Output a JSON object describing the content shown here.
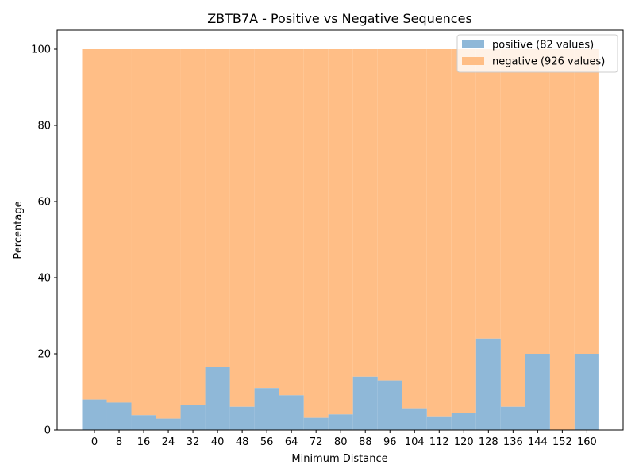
{
  "chart_data": {
    "type": "bar",
    "title": "ZBTB7A - Positive vs Negative Sequences",
    "xlabel": "Minimum Distance",
    "ylabel": "Percentage",
    "ylim": [
      0,
      105
    ],
    "yticks": [
      0,
      20,
      40,
      60,
      80,
      100
    ],
    "categories": [
      "0",
      "8",
      "16",
      "24",
      "32",
      "40",
      "48",
      "56",
      "64",
      "72",
      "80",
      "88",
      "96",
      "104",
      "112",
      "120",
      "128",
      "136",
      "144",
      "152",
      "160"
    ],
    "bar_width": 8,
    "stacked": true,
    "legend_position": "top-right",
    "grid": false,
    "series": [
      {
        "name": "positive (82 values)",
        "color": "#8fb8d8",
        "values": [
          8.0,
          7.2,
          3.9,
          3.0,
          6.5,
          16.5,
          6.1,
          11.0,
          9.1,
          3.2,
          4.1,
          14.0,
          13.0,
          5.7,
          3.6,
          4.5,
          24.0,
          6.1,
          20.0,
          0,
          20.0
        ]
      },
      {
        "name": "negative (926 values)",
        "color": "#ffbe86",
        "values": [
          92.0,
          92.8,
          96.1,
          97.0,
          93.5,
          83.5,
          93.9,
          89.0,
          90.9,
          96.8,
          95.9,
          86.0,
          87.0,
          94.3,
          96.4,
          95.5,
          76.0,
          93.9,
          80.0,
          100.0,
          80.0
        ]
      }
    ]
  }
}
